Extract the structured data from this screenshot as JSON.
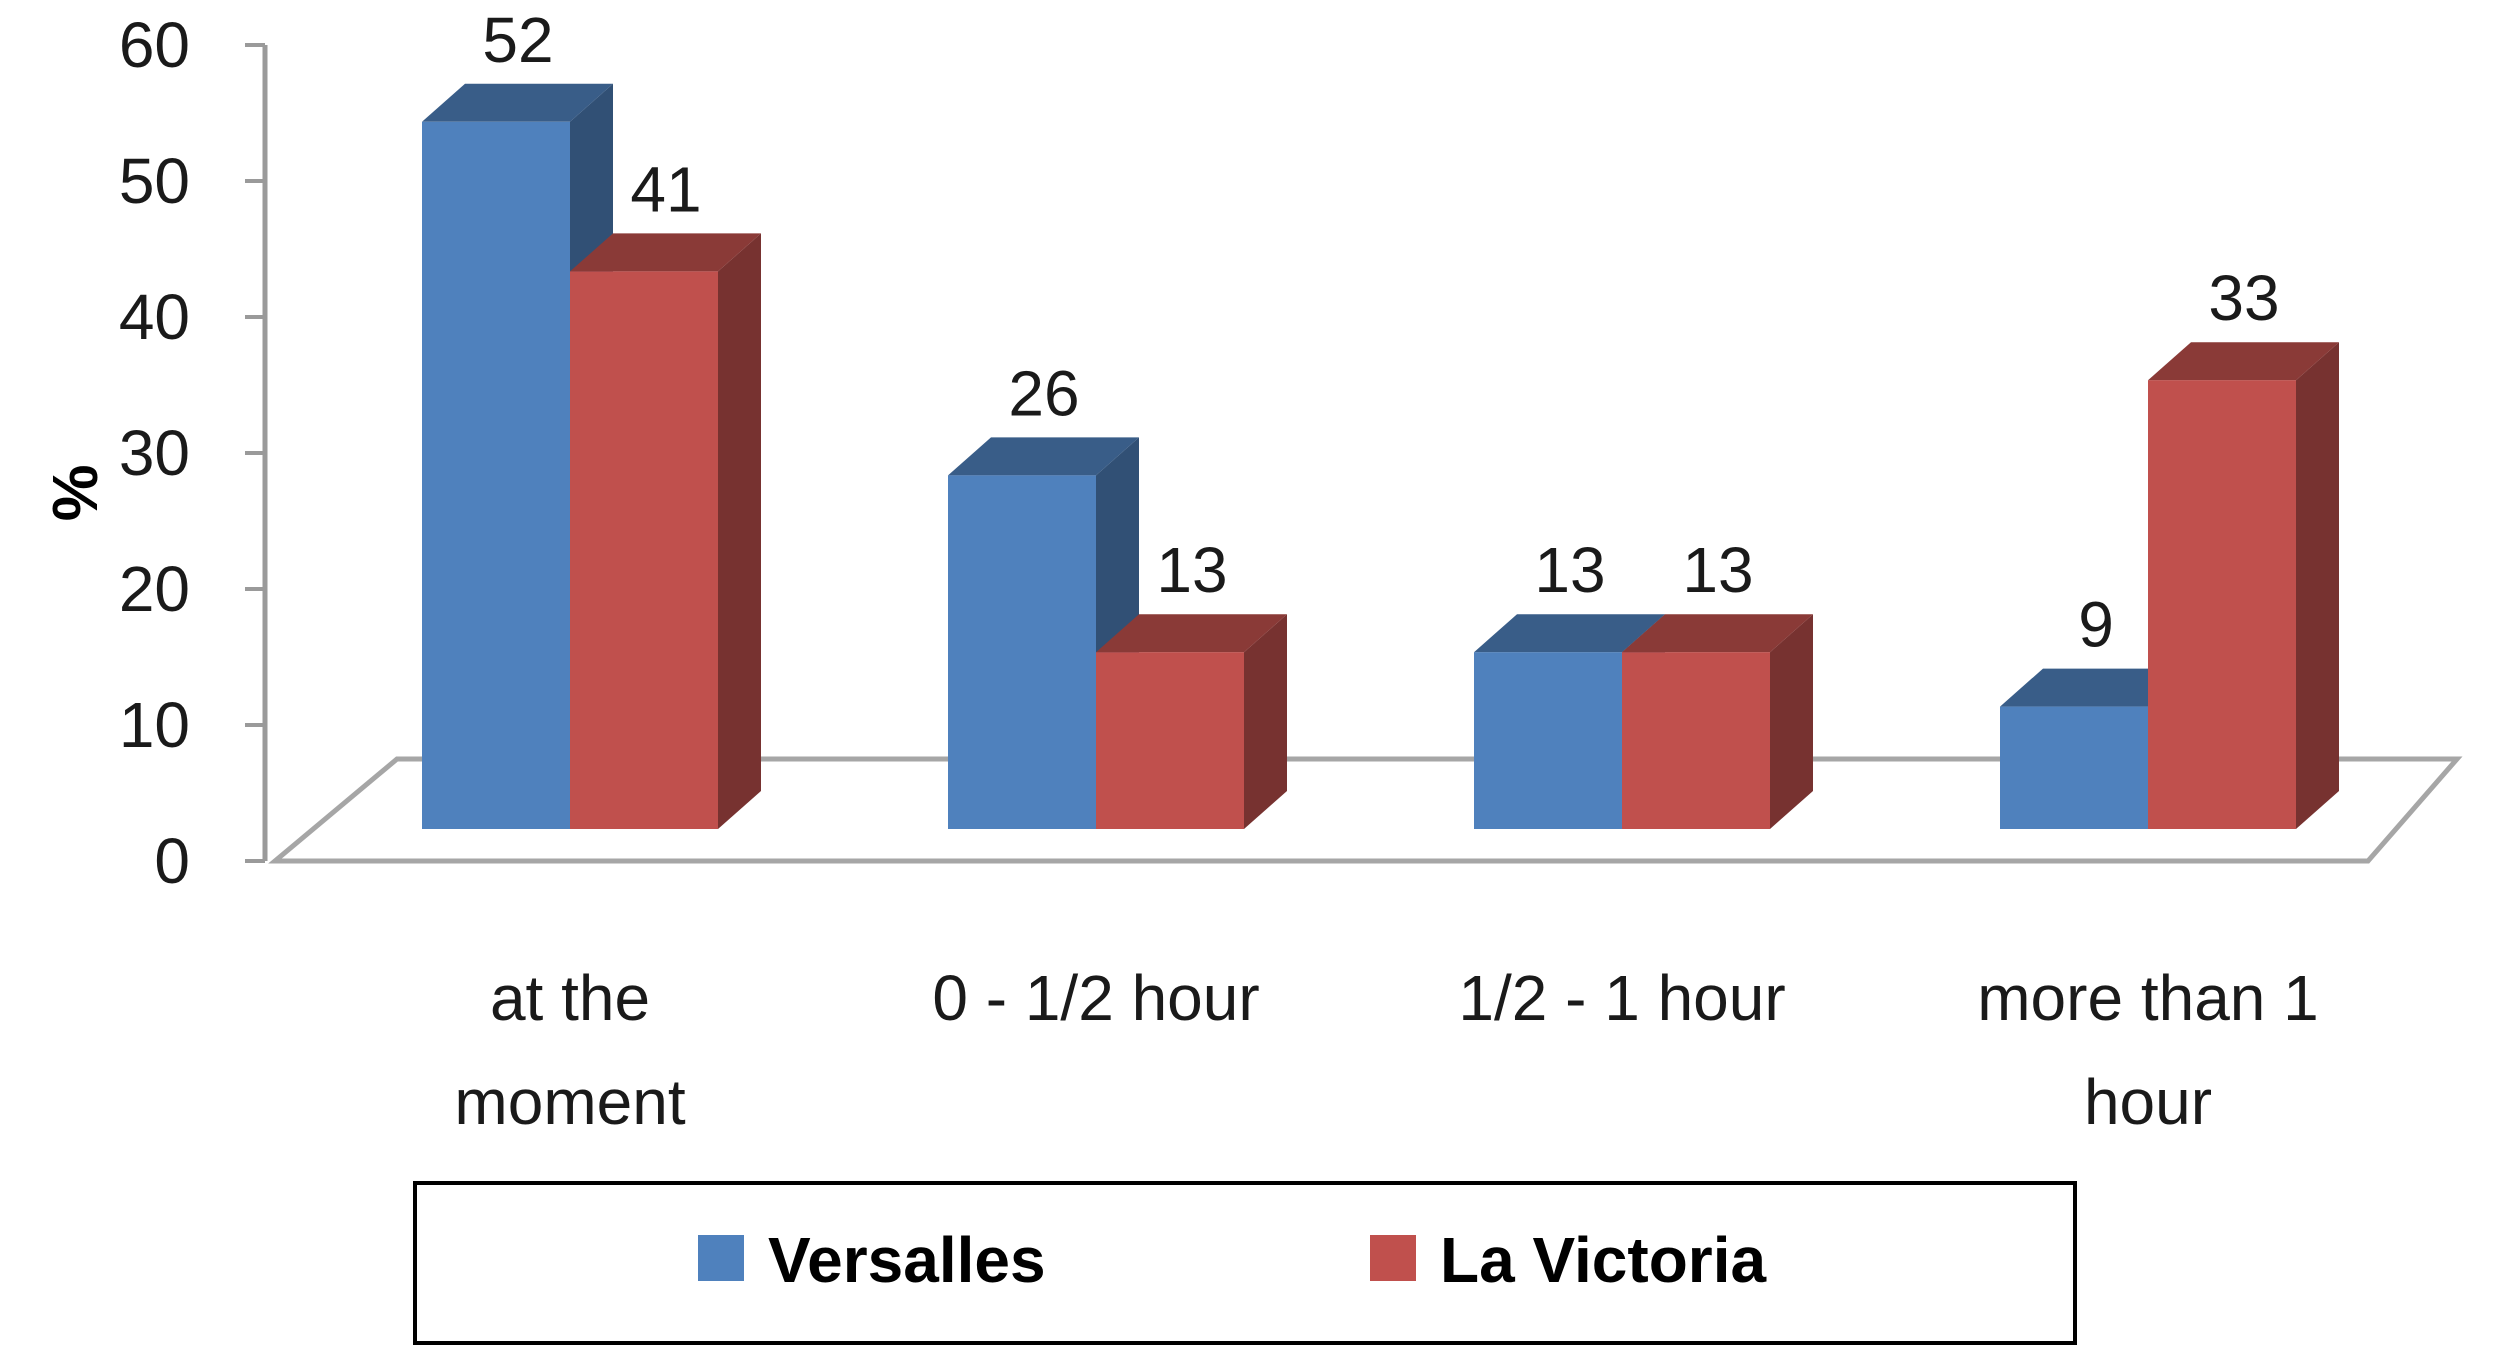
{
  "chart_data": {
    "type": "bar",
    "three_d": true,
    "ylabel": "%",
    "xlabel": "",
    "ylim": [
      0,
      60
    ],
    "yticks": [
      "0",
      "10",
      "20",
      "30",
      "40",
      "50",
      "60"
    ],
    "categories": [
      [
        "at the",
        "moment"
      ],
      [
        "0 - 1/2 hour"
      ],
      [
        "1/2 - 1 hour"
      ],
      [
        "more than 1",
        "hour"
      ]
    ],
    "series": [
      {
        "name": "Versalles",
        "values": [
          52,
          26,
          13,
          9
        ],
        "color": "#4F81BD"
      },
      {
        "name": "La Victoria",
        "values": [
          41,
          13,
          13,
          33
        ],
        "color": "#C0504D"
      }
    ],
    "legend_position": "bottom",
    "data_labels": true,
    "grid": false
  }
}
